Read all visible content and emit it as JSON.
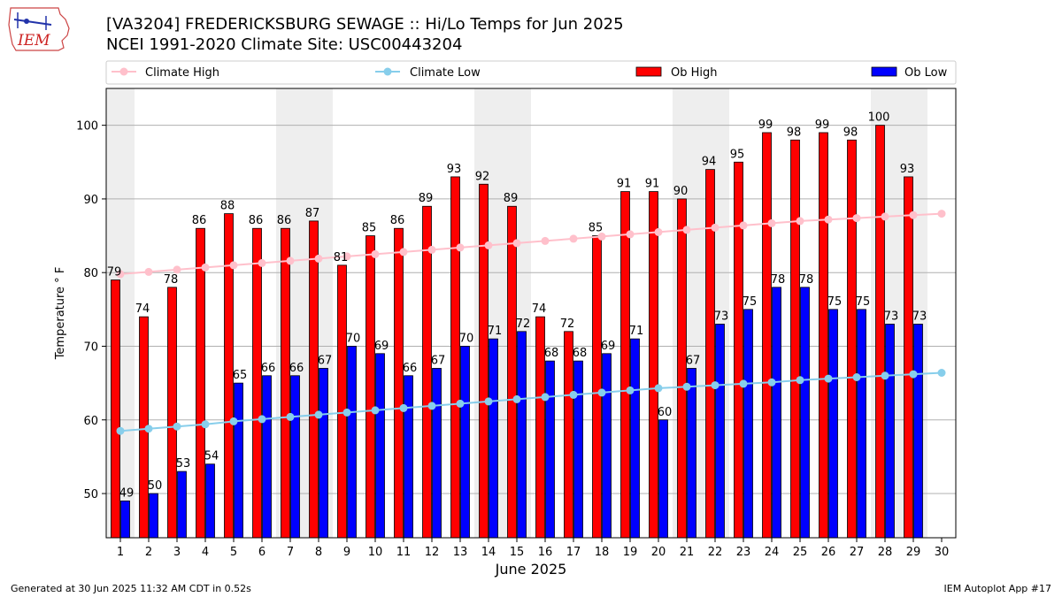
{
  "header": {
    "title_line1": "[VA3204] FREDERICKSBURG SEWAGE :: Hi/Lo Temps for Jun 2025",
    "title_line2": "NCEI 1991-2020 Climate Site: USC00443204",
    "logo_text": "IEM"
  },
  "footer": {
    "generated": "Generated at 30 Jun 2025 11:32 AM CDT in 0.52s",
    "app": "IEM Autoplot App #17"
  },
  "colors": {
    "ob_high": "#ff0000",
    "ob_low": "#0000ff",
    "climate_high": "#ffc0cb",
    "climate_low": "#87ceeb",
    "weekend_shade": "#eeeeee",
    "grid": "#b0b0b0"
  },
  "chart_data": {
    "type": "bar",
    "xlabel": "June 2025",
    "ylabel": "Temperature ° F",
    "ylim": [
      44,
      105
    ],
    "yticks": [
      50,
      60,
      70,
      80,
      90,
      100
    ],
    "grid": true,
    "legend_placement": "top",
    "x": [
      1,
      2,
      3,
      4,
      5,
      6,
      7,
      8,
      9,
      10,
      11,
      12,
      13,
      14,
      15,
      16,
      17,
      18,
      19,
      20,
      21,
      22,
      23,
      24,
      25,
      26,
      27,
      28,
      29,
      30
    ],
    "shaded_days": [
      1,
      7,
      8,
      14,
      15,
      21,
      22,
      28,
      29
    ],
    "series": [
      {
        "name": "Ob High",
        "kind": "bar",
        "values": [
          79,
          74,
          78,
          86,
          88,
          86,
          86,
          87,
          81,
          85,
          86,
          89,
          93,
          92,
          89,
          74,
          72,
          85,
          91,
          91,
          90,
          94,
          95,
          99,
          98,
          99,
          98,
          100,
          93,
          null
        ]
      },
      {
        "name": "Ob Low",
        "kind": "bar",
        "values": [
          49,
          50,
          53,
          54,
          65,
          66,
          66,
          67,
          70,
          69,
          66,
          67,
          70,
          71,
          72,
          68,
          68,
          69,
          71,
          60,
          67,
          73,
          75,
          78,
          78,
          75,
          75,
          73,
          73,
          null
        ]
      },
      {
        "name": "Climate High",
        "kind": "line",
        "values": [
          79.8,
          80.1,
          80.4,
          80.7,
          81.0,
          81.3,
          81.6,
          81.9,
          82.2,
          82.5,
          82.8,
          83.1,
          83.4,
          83.7,
          84.0,
          84.3,
          84.6,
          84.9,
          85.2,
          85.5,
          85.8,
          86.1,
          86.4,
          86.7,
          87.0,
          87.2,
          87.4,
          87.6,
          87.8,
          88.0
        ]
      },
      {
        "name": "Climate Low",
        "kind": "line",
        "values": [
          58.5,
          58.8,
          59.1,
          59.4,
          59.8,
          60.1,
          60.4,
          60.7,
          61.0,
          61.3,
          61.6,
          61.9,
          62.2,
          62.5,
          62.8,
          63.1,
          63.4,
          63.7,
          64.0,
          64.3,
          64.5,
          64.7,
          64.9,
          65.1,
          65.4,
          65.6,
          65.8,
          66.0,
          66.2,
          66.4
        ]
      }
    ]
  }
}
